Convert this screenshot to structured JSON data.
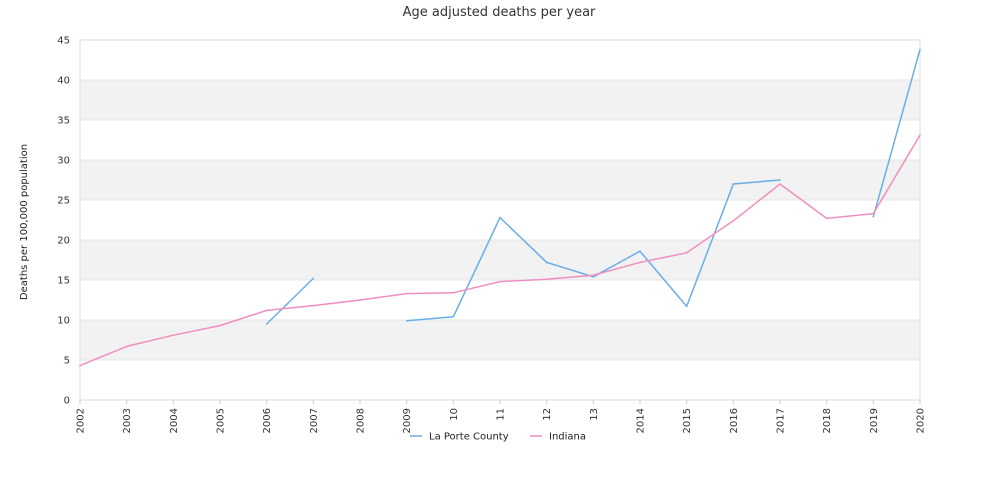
{
  "chart_data": {
    "type": "line",
    "title": "Age adjusted deaths per year",
    "xlabel": "",
    "ylabel": "Deaths per 100,000 population",
    "ylim": [
      0,
      45
    ],
    "yticks": [
      "0",
      "5",
      "10",
      "15",
      "20",
      "25",
      "30",
      "35",
      "40",
      "45"
    ],
    "x": [
      "2002",
      "2003",
      "2004",
      "2005",
      "2006",
      "2007",
      "2008",
      "2009",
      "10",
      "11",
      "12",
      "13",
      "2014",
      "2015",
      "2016",
      "2017",
      "2018",
      "2019",
      "2020"
    ],
    "grid": "horizontal alternating bands",
    "legend_position": "bottom",
    "series": [
      {
        "name": "La Porte County",
        "color": "#6aaee8",
        "values": [
          null,
          null,
          null,
          null,
          9.5,
          15.2,
          null,
          9.9,
          10.4,
          22.8,
          17.2,
          15.4,
          18.6,
          11.7,
          27.0,
          27.5,
          null,
          22.9,
          43.8
        ]
      },
      {
        "name": "Indiana",
        "color": "#ee8fc1",
        "values": [
          4.3,
          6.7,
          8.1,
          9.3,
          11.2,
          11.8,
          12.5,
          13.3,
          13.4,
          14.8,
          15.1,
          15.6,
          17.2,
          18.4,
          22.4,
          27.0,
          22.7,
          23.3,
          33.1
        ]
      }
    ]
  }
}
